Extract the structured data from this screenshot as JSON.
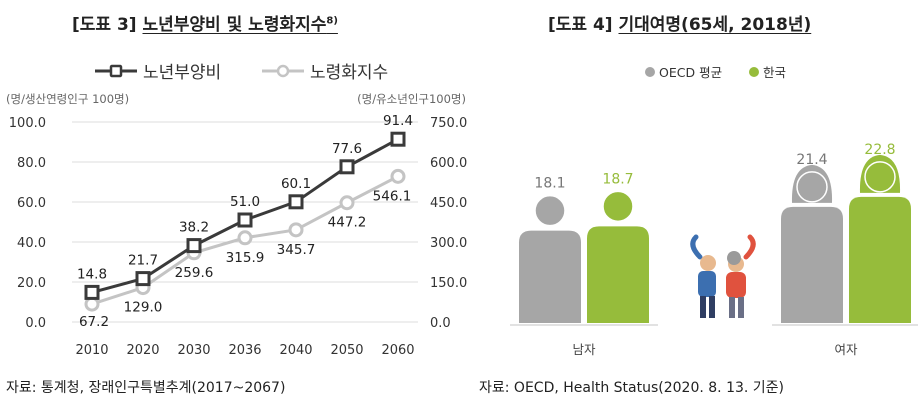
{
  "left_panel": {
    "title_prefix": "[도표 3]",
    "title_text": "노년부양비 및 노령화지수",
    "title_footnote": "8)",
    "source": "자료:  통계청, 장래인구특별추계(2017~2067)"
  },
  "right_panel": {
    "title_prefix": "[도표 4]",
    "title_text": "기대여명(65세, 2018년)",
    "source": "자료: OECD, Health Status(2020. 8. 13. 기준)"
  },
  "colors": {
    "dark_series": "#3a3a3a",
    "light_series": "#c4c4c4",
    "oecd_gray": "#a6a6a6",
    "korea_green": "#96bc3b",
    "grid": "#dddddd"
  },
  "chart_data": [
    {
      "type": "line",
      "categories": [
        "2010",
        "2020",
        "2030",
        "2036",
        "2040",
        "2050",
        "2060"
      ],
      "left_axis_label": "(명/생산연령인구 100명)",
      "right_axis_label": "(명/유소년인구100명)",
      "left_ticks": [
        "100.0",
        "80.0",
        "60.0",
        "40.0",
        "20.0",
        "0.0"
      ],
      "right_ticks": [
        "750.0",
        "600.0",
        "450.0",
        "300.0",
        "150.0",
        "0.0"
      ],
      "ylim_left": [
        0,
        100
      ],
      "ylim_right": [
        0,
        750
      ],
      "series": [
        {
          "name": "노년부양비",
          "axis": "left",
          "values": [
            14.8,
            21.7,
            38.2,
            51.0,
            60.1,
            77.6,
            91.4
          ],
          "labels": [
            "14.8",
            "21.7",
            "38.2",
            "51.0",
            "60.1",
            "77.6",
            "91.4"
          ]
        },
        {
          "name": "노령화지수",
          "axis": "right",
          "values": [
            67.2,
            129.0,
            259.6,
            315.9,
            345.7,
            447.2,
            546.1
          ],
          "labels": [
            "67.2",
            "129.0",
            "259.6",
            "315.9",
            "345.7",
            "447.2",
            "546.1"
          ]
        }
      ],
      "grid": true,
      "legend": "top"
    },
    {
      "type": "bar",
      "categories": [
        "남자",
        "여자"
      ],
      "series": [
        {
          "name": "OECD 평균",
          "values": [
            18.1,
            21.4
          ],
          "labels": [
            "18.1",
            "21.4"
          ]
        },
        {
          "name": "한국",
          "values": [
            18.7,
            22.8
          ],
          "labels": [
            "18.7",
            "22.8"
          ]
        }
      ],
      "legend": "top"
    }
  ]
}
